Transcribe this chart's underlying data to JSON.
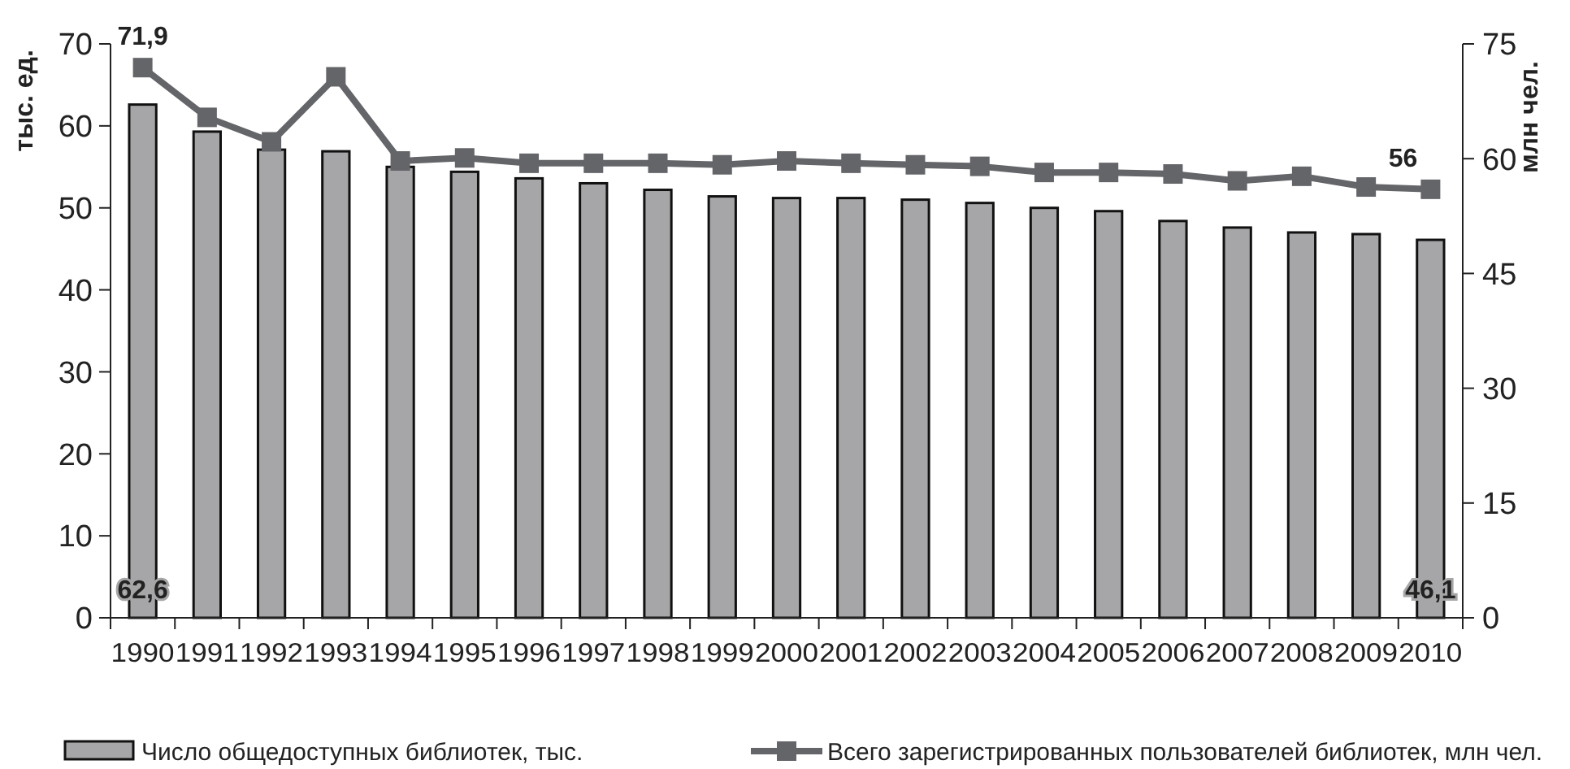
{
  "chart_data": {
    "type": "bar",
    "categories": [
      "1990",
      "1991",
      "1992",
      "1993",
      "1994",
      "1995",
      "1996",
      "1997",
      "1998",
      "1999",
      "2000",
      "2001",
      "2002",
      "2003",
      "2004",
      "2005",
      "2006",
      "2007",
      "2008",
      "2009",
      "2010"
    ],
    "series": [
      {
        "name": "Число общедоступных библиотек, тыс.",
        "color": "#a6a6a8",
        "values": [
          62.6,
          59.3,
          57.1,
          56.9,
          55.0,
          54.4,
          53.6,
          53.0,
          52.2,
          51.4,
          51.2,
          51.2,
          51.0,
          50.6,
          50.0,
          49.6,
          48.4,
          47.6,
          47.0,
          46.8,
          46.1
        ],
        "value_labels": [
          "62,6",
          null,
          null,
          null,
          null,
          null,
          null,
          null,
          null,
          null,
          null,
          null,
          null,
          null,
          null,
          null,
          null,
          null,
          null,
          null,
          "46,1"
        ]
      },
      {
        "name": "Всего зарегистрированных пользователей библиотек, млн чел.",
        "type": "line",
        "axis": "y2",
        "color": "#646569",
        "marker": "square",
        "values": [
          71.9,
          65.4,
          62.2,
          70.7,
          59.7,
          60.1,
          59.4,
          59.4,
          59.4,
          59.2,
          59.7,
          59.4,
          59.2,
          59.0,
          58.2,
          58.2,
          58.0,
          57.1,
          57.7,
          56.3,
          56
        ],
        "value_labels": [
          "71,9",
          null,
          null,
          null,
          null,
          null,
          null,
          null,
          null,
          null,
          null,
          null,
          null,
          null,
          null,
          null,
          null,
          null,
          null,
          null,
          "56"
        ]
      }
    ],
    "ylabel": "тыс. ед.",
    "y2label": "млн чел.",
    "ylim": [
      0,
      70
    ],
    "yticks": [
      0,
      10,
      20,
      30,
      40,
      50,
      60,
      70
    ],
    "y2lim": [
      0,
      75
    ],
    "y2ticks": [
      0,
      15,
      30,
      45,
      60,
      75
    ],
    "grid": false,
    "legend": "bottom"
  }
}
